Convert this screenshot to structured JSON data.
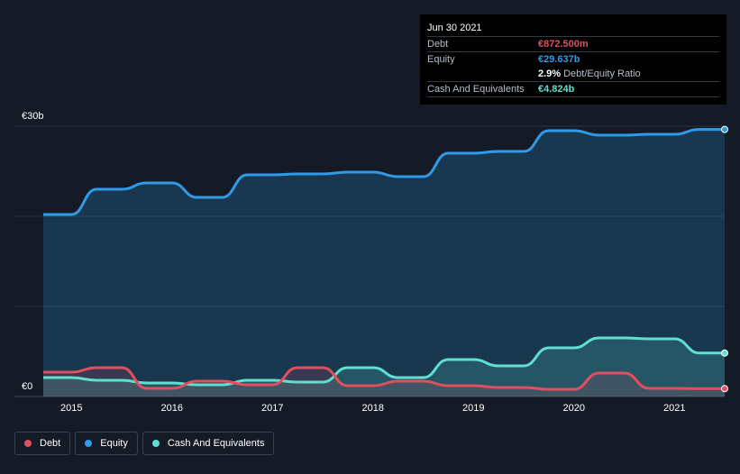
{
  "tooltip": {
    "date": "Jun 30 2021",
    "debt_label": "Debt",
    "debt_value": "€872.500m",
    "equity_label": "Equity",
    "equity_value": "€29.637b",
    "ratio_value": "2.9%",
    "ratio_label": "Debt/Equity Ratio",
    "cash_label": "Cash And Equivalents",
    "cash_value": "€4.824b"
  },
  "legend": [
    {
      "label": "Debt",
      "color": "#e0505e"
    },
    {
      "label": "Equity",
      "color": "#2f9be8"
    },
    {
      "label": "Cash And Equivalents",
      "color": "#5fe0cf"
    }
  ],
  "chart_data": {
    "type": "line",
    "title": "",
    "xlabel": "",
    "ylabel": "",
    "ylim": [
      0,
      30
    ],
    "y_unit": "€ billions",
    "y_ticks": [
      {
        "value": 30,
        "label": "€30b"
      },
      {
        "value": 0,
        "label": "€0"
      }
    ],
    "xlim": [
      2014.72,
      2021.5
    ],
    "x_ticks": [
      {
        "value": 2015,
        "label": "2015"
      },
      {
        "value": 2016,
        "label": "2016"
      },
      {
        "value": 2017,
        "label": "2017"
      },
      {
        "value": 2018,
        "label": "2018"
      },
      {
        "value": 2019,
        "label": "2019"
      },
      {
        "value": 2020,
        "label": "2020"
      },
      {
        "value": 2021,
        "label": "2021"
      }
    ],
    "series": [
      {
        "name": "Equity",
        "color": "#2f9be8",
        "x": [
          2014.72,
          2015.0,
          2015.25,
          2015.5,
          2015.75,
          2016.0,
          2016.25,
          2016.5,
          2016.75,
          2017.0,
          2017.25,
          2017.5,
          2017.75,
          2018.0,
          2018.25,
          2018.5,
          2018.75,
          2019.0,
          2019.25,
          2019.5,
          2019.75,
          2020.0,
          2020.25,
          2020.5,
          2020.75,
          2021.0,
          2021.25,
          2021.5
        ],
        "y": [
          20.2,
          20.2,
          23.0,
          23.0,
          23.7,
          23.7,
          22.1,
          22.1,
          24.6,
          24.6,
          24.7,
          24.7,
          24.9,
          24.9,
          24.4,
          24.4,
          27.0,
          27.0,
          27.2,
          27.2,
          29.5,
          29.5,
          29.0,
          29.0,
          29.1,
          29.1,
          29.637,
          29.637
        ]
      },
      {
        "name": "Cash And Equivalents",
        "color": "#5fe0cf",
        "x": [
          2014.72,
          2015.0,
          2015.25,
          2015.5,
          2015.75,
          2016.0,
          2016.25,
          2016.5,
          2016.75,
          2017.0,
          2017.25,
          2017.5,
          2017.75,
          2018.0,
          2018.25,
          2018.5,
          2018.75,
          2019.0,
          2019.25,
          2019.5,
          2019.75,
          2020.0,
          2020.25,
          2020.5,
          2020.75,
          2021.0,
          2021.25,
          2021.5
        ],
        "y": [
          2.1,
          2.1,
          1.8,
          1.8,
          1.5,
          1.5,
          1.3,
          1.3,
          1.8,
          1.8,
          1.6,
          1.6,
          3.2,
          3.2,
          2.1,
          2.1,
          4.1,
          4.1,
          3.4,
          3.4,
          5.4,
          5.4,
          6.5,
          6.5,
          6.4,
          6.4,
          4.824,
          4.824
        ]
      },
      {
        "name": "Debt",
        "color": "#e0505e",
        "x": [
          2014.72,
          2015.0,
          2015.25,
          2015.5,
          2015.75,
          2016.0,
          2016.25,
          2016.5,
          2016.75,
          2017.0,
          2017.25,
          2017.5,
          2017.75,
          2018.0,
          2018.25,
          2018.5,
          2018.75,
          2019.0,
          2019.25,
          2019.5,
          2019.75,
          2020.0,
          2020.25,
          2020.5,
          2020.75,
          2021.0,
          2021.25,
          2021.5
        ],
        "y": [
          2.7,
          2.7,
          3.2,
          3.2,
          0.9,
          0.9,
          1.7,
          1.7,
          1.3,
          1.3,
          3.2,
          3.2,
          1.2,
          1.2,
          1.7,
          1.7,
          1.2,
          1.2,
          1.0,
          1.0,
          0.8,
          0.8,
          2.6,
          2.6,
          0.9,
          0.9,
          0.8725,
          0.8725
        ]
      }
    ]
  }
}
